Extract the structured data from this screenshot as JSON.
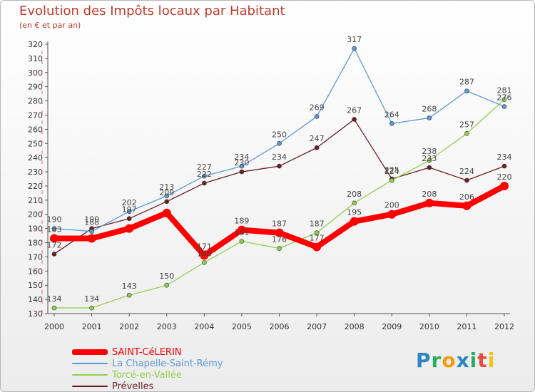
{
  "header": {
    "title": "Evolution des Impôts locaux par Habitant",
    "subtitle": "(en € et par an)"
  },
  "logo": {
    "letters": [
      "P",
      "r",
      "o",
      "x",
      "i",
      "t",
      "i"
    ],
    "colors": [
      "#2e86c1",
      "#27ae60",
      "#f39c12",
      "#2e86c1",
      "#27ae60",
      "#e74c3c",
      "#f1c40f"
    ]
  },
  "chart_data": {
    "type": "line",
    "title": "Evolution des Impôts locaux par Habitant",
    "subtitle": "(en € et par an)",
    "xlabel": "",
    "ylabel": "",
    "x": [
      "2000",
      "2001",
      "2002",
      "2003",
      "2004",
      "2005",
      "2006",
      "2007",
      "2008",
      "2009",
      "2010",
      "2011",
      "2012"
    ],
    "ylim": [
      130,
      320
    ],
    "ytick_step": 10,
    "grid": false,
    "legend_position": "bottom-left",
    "series": [
      {
        "name": "SAINT-CéLERIN",
        "color": "#ff0000",
        "values": [
          183,
          183,
          190,
          201,
          171,
          189,
          187,
          177,
          195,
          200,
          208,
          206,
          220
        ],
        "labels": [
          "183",
          "",
          "",
          "",
          "171",
          "189",
          "187",
          "177",
          "195",
          "200",
          "208",
          "206",
          "220"
        ]
      },
      {
        "name": "La Chapelle-Saint-Rémy",
        "color": "#5b9bd5",
        "values": [
          190,
          188,
          202,
          213,
          227,
          234,
          250,
          269,
          317,
          264,
          268,
          287,
          276
        ],
        "labels": [
          "190",
          "188",
          "202",
          "213",
          "227",
          "234",
          "250",
          "269",
          "317",
          "264",
          "268",
          "287",
          "276"
        ]
      },
      {
        "name": "Torcé-en-Vallée",
        "color": "#8fd14f",
        "values": [
          134,
          134,
          143,
          150,
          166,
          181,
          176,
          187,
          208,
          224,
          238,
          257,
          281
        ],
        "labels": [
          "134",
          "134",
          "143",
          "150",
          "166",
          "181",
          "176",
          "187",
          "208",
          "224",
          "238",
          "257",
          "281"
        ]
      },
      {
        "name": "Prévelles",
        "color": "#6b1f24",
        "values": [
          172,
          190,
          197,
          209,
          222,
          230,
          234,
          247,
          267,
          225,
          233,
          224,
          234
        ],
        "labels": [
          "172",
          "190",
          "197",
          "209",
          "222",
          "230",
          "234",
          "247",
          "267",
          "225",
          "233",
          "224",
          "234"
        ]
      }
    ]
  }
}
